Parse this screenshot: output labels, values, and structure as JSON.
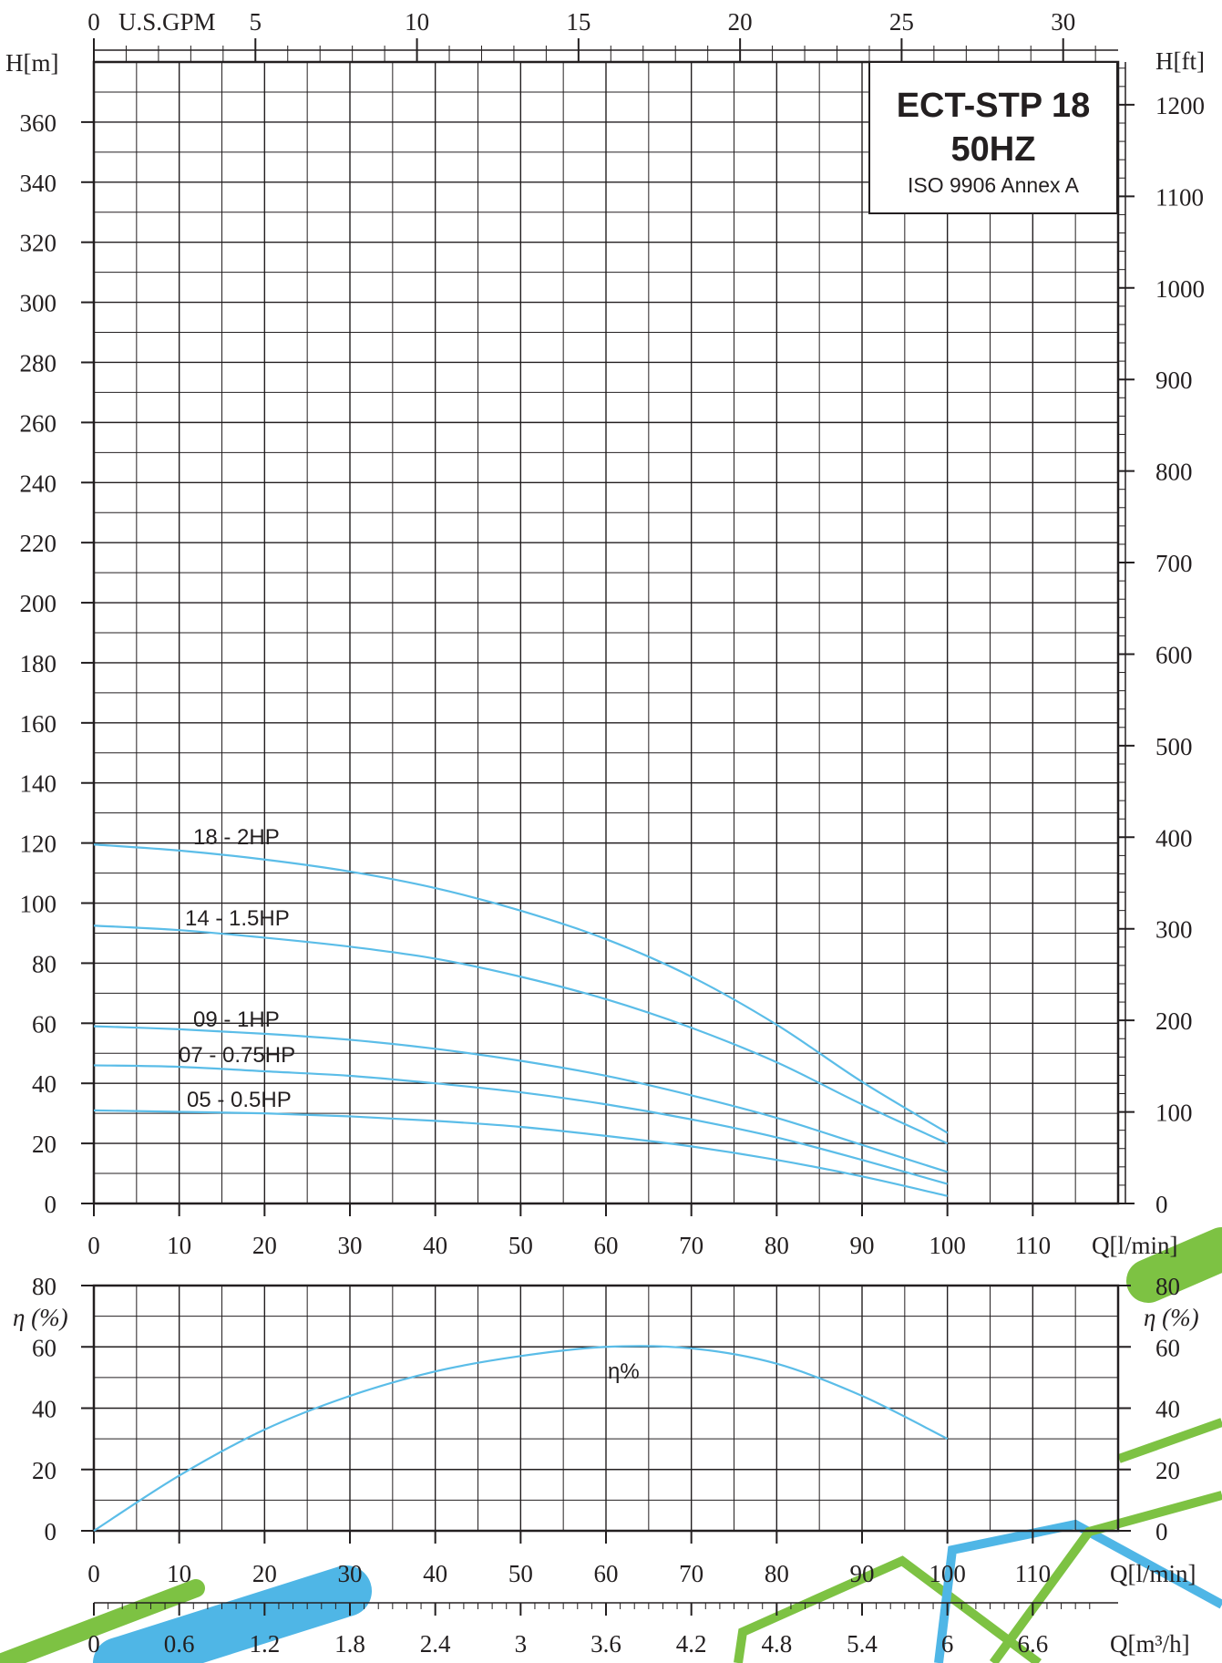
{
  "title_box": {
    "title": "ECT-STP 18",
    "frequency": "50HZ",
    "standard": "ISO 9906 Annex A"
  },
  "colors": {
    "curve": "#5bbde8",
    "grid": "#231f20",
    "deco_green": "#7dc243",
    "deco_blue": "#4fb6e6"
  },
  "chart_data": [
    {
      "type": "line",
      "xlabel": "Q[l/min]",
      "xlim": [
        0,
        120
      ],
      "x_ticks": [
        "0",
        "10",
        "20",
        "30",
        "40",
        "50",
        "60",
        "70",
        "80",
        "90",
        "100",
        "110"
      ],
      "ylabel": "H[m]",
      "ylim": [
        0,
        380
      ],
      "y_ticks": [
        "0",
        "20",
        "40",
        "60",
        "80",
        "100",
        "120",
        "140",
        "160",
        "180",
        "200",
        "220",
        "240",
        "260",
        "280",
        "300",
        "320",
        "340",
        "360"
      ],
      "secondary_top_axis": {
        "label": "U.S.GPM",
        "ticks": [
          "0",
          "5",
          "10",
          "15",
          "20",
          "25",
          "30"
        ]
      },
      "secondary_right_axis": {
        "label": "H[ft]",
        "ticks": [
          "0",
          "100",
          "200",
          "300",
          "400",
          "500",
          "600",
          "700",
          "800",
          "900",
          "1000",
          "1100",
          "1200"
        ]
      },
      "grid": true,
      "x": [
        0,
        10,
        20,
        30,
        40,
        50,
        60,
        70,
        80,
        90,
        100
      ],
      "series": [
        {
          "name": "18 - 2HP",
          "values": [
            119.5,
            117.5,
            114.5,
            110.5,
            105,
            97.5,
            88,
            75.5,
            59.5,
            40.5,
            23.5
          ]
        },
        {
          "name": "14 - 1.5HP",
          "values": [
            92.5,
            91,
            88.5,
            85.5,
            81.5,
            75.5,
            68,
            58.5,
            47,
            33,
            20
          ]
        },
        {
          "name": "09 - 1HP",
          "values": [
            59,
            58,
            56.5,
            54.5,
            51.5,
            47.5,
            42.5,
            36,
            28.5,
            19.5,
            10.5
          ]
        },
        {
          "name": "07 - 0.75HP",
          "values": [
            46,
            45.5,
            44,
            42.5,
            40,
            37,
            33,
            28,
            22,
            14.5,
            6.5
          ]
        },
        {
          "name": "05 - 0.5HP",
          "values": [
            31,
            30.5,
            30,
            29,
            27.5,
            25.5,
            22.5,
            19,
            14.5,
            9,
            2.5
          ]
        }
      ]
    },
    {
      "type": "line",
      "xlabel": "Q[l/min]",
      "xlim": [
        0,
        120
      ],
      "x_ticks": [
        "0",
        "10",
        "20",
        "30",
        "40",
        "50",
        "60",
        "70",
        "80",
        "90",
        "100",
        "110"
      ],
      "secondary_bottom_axis": {
        "label": "Q[m³/h]",
        "ticks": [
          "0",
          "0.6",
          "1.2",
          "1.8",
          "2.4",
          "3",
          "3.6",
          "4.2",
          "4.8",
          "5.4",
          "6",
          "6.6"
        ]
      },
      "ylabel": "η (%)",
      "ylim": [
        0,
        80
      ],
      "y_ticks": [
        "0",
        "20",
        "40",
        "60",
        "80"
      ],
      "grid": true,
      "x": [
        0,
        10,
        20,
        30,
        40,
        50,
        60,
        70,
        80,
        90,
        100
      ],
      "series": [
        {
          "name": "η%",
          "values": [
            0,
            18,
            33,
            44,
            52,
            57,
            60,
            59.5,
            54.5,
            44,
            30
          ]
        }
      ]
    }
  ]
}
